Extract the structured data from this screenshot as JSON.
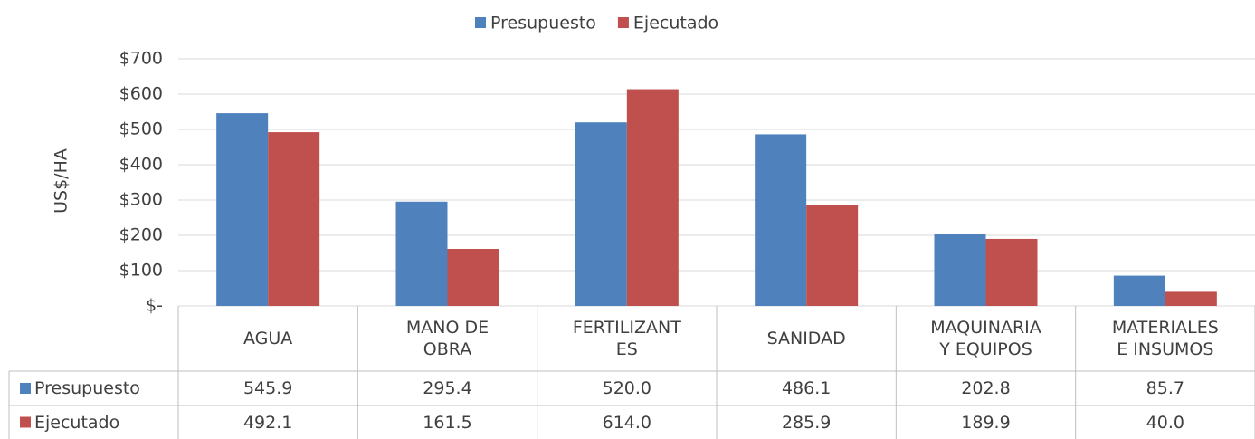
{
  "chart_data": {
    "type": "bar",
    "y_label": "US$/HA",
    "categories": [
      "AGUA",
      "MANO DE\nOBRA",
      "FERTILIZANT\nES",
      "SANIDAD",
      "MAQUINARIA\nY EQUIPOS",
      "MATERIALES\nE INSUMOS"
    ],
    "series": [
      {
        "name": "Presupuesto",
        "color": "#4f81bd",
        "values": [
          545.9,
          295.4,
          520.0,
          486.1,
          202.8,
          85.7
        ],
        "value_labels": [
          "545.9",
          "295.4",
          "520.0",
          "486.1",
          "202.8",
          "85.7"
        ]
      },
      {
        "name": "Ejecutado",
        "color": "#c0504d",
        "values": [
          492.1,
          161.5,
          614.0,
          285.9,
          189.9,
          40.0
        ],
        "value_labels": [
          "492.1",
          "161.5",
          "614.0",
          "285.9",
          "189.9",
          "40.0"
        ]
      }
    ],
    "ylim": [
      0,
      700
    ],
    "yticks": [
      {
        "value": 0,
        "label": "$-"
      },
      {
        "value": 100,
        "label": "$100"
      },
      {
        "value": 200,
        "label": "$200"
      },
      {
        "value": 300,
        "label": "$300"
      },
      {
        "value": 400,
        "label": "$400"
      },
      {
        "value": 500,
        "label": "$500"
      },
      {
        "value": 600,
        "label": "$600"
      },
      {
        "value": 700,
        "label": "$700"
      }
    ],
    "grid": true,
    "legend": "top"
  }
}
